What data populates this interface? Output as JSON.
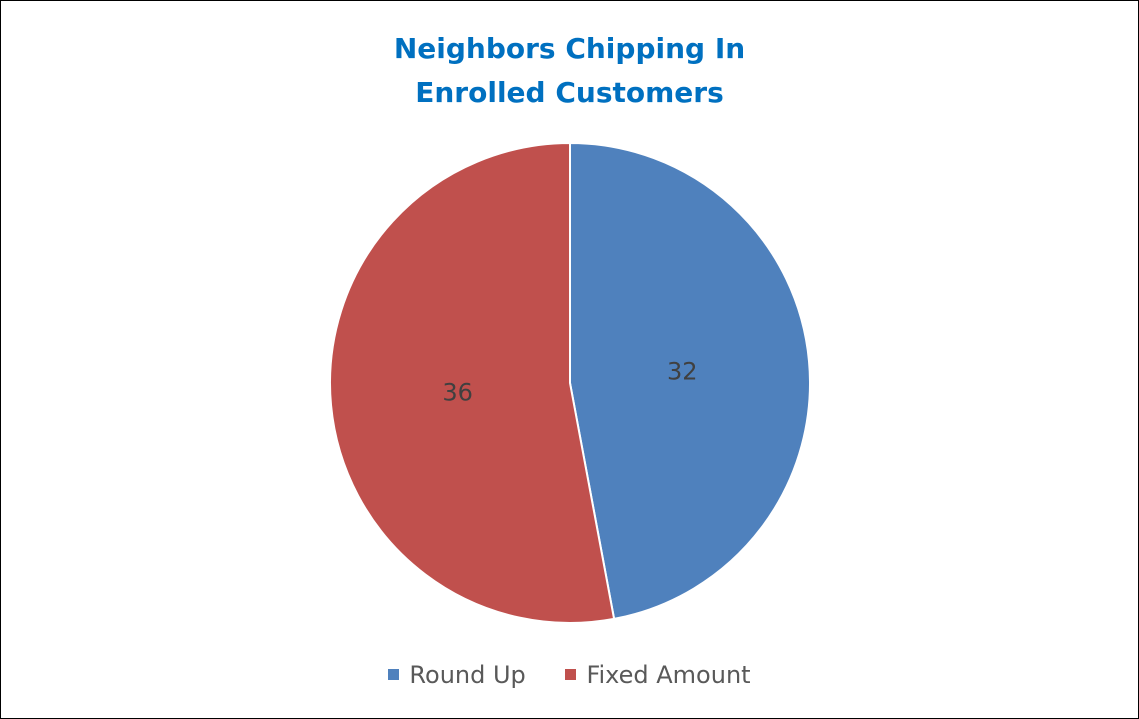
{
  "chart_data": {
    "type": "pie",
    "title": "Neighbors Chipping In",
    "subtitle": "Enrolled Customers",
    "categories": [
      "Round Up",
      "Fixed Amount"
    ],
    "values": [
      32,
      36
    ],
    "colors": [
      "#4f81bd",
      "#c0504d"
    ],
    "data_labels": [
      "32",
      "36"
    ],
    "legend_position": "bottom",
    "start_angle": "top, clockwise"
  }
}
